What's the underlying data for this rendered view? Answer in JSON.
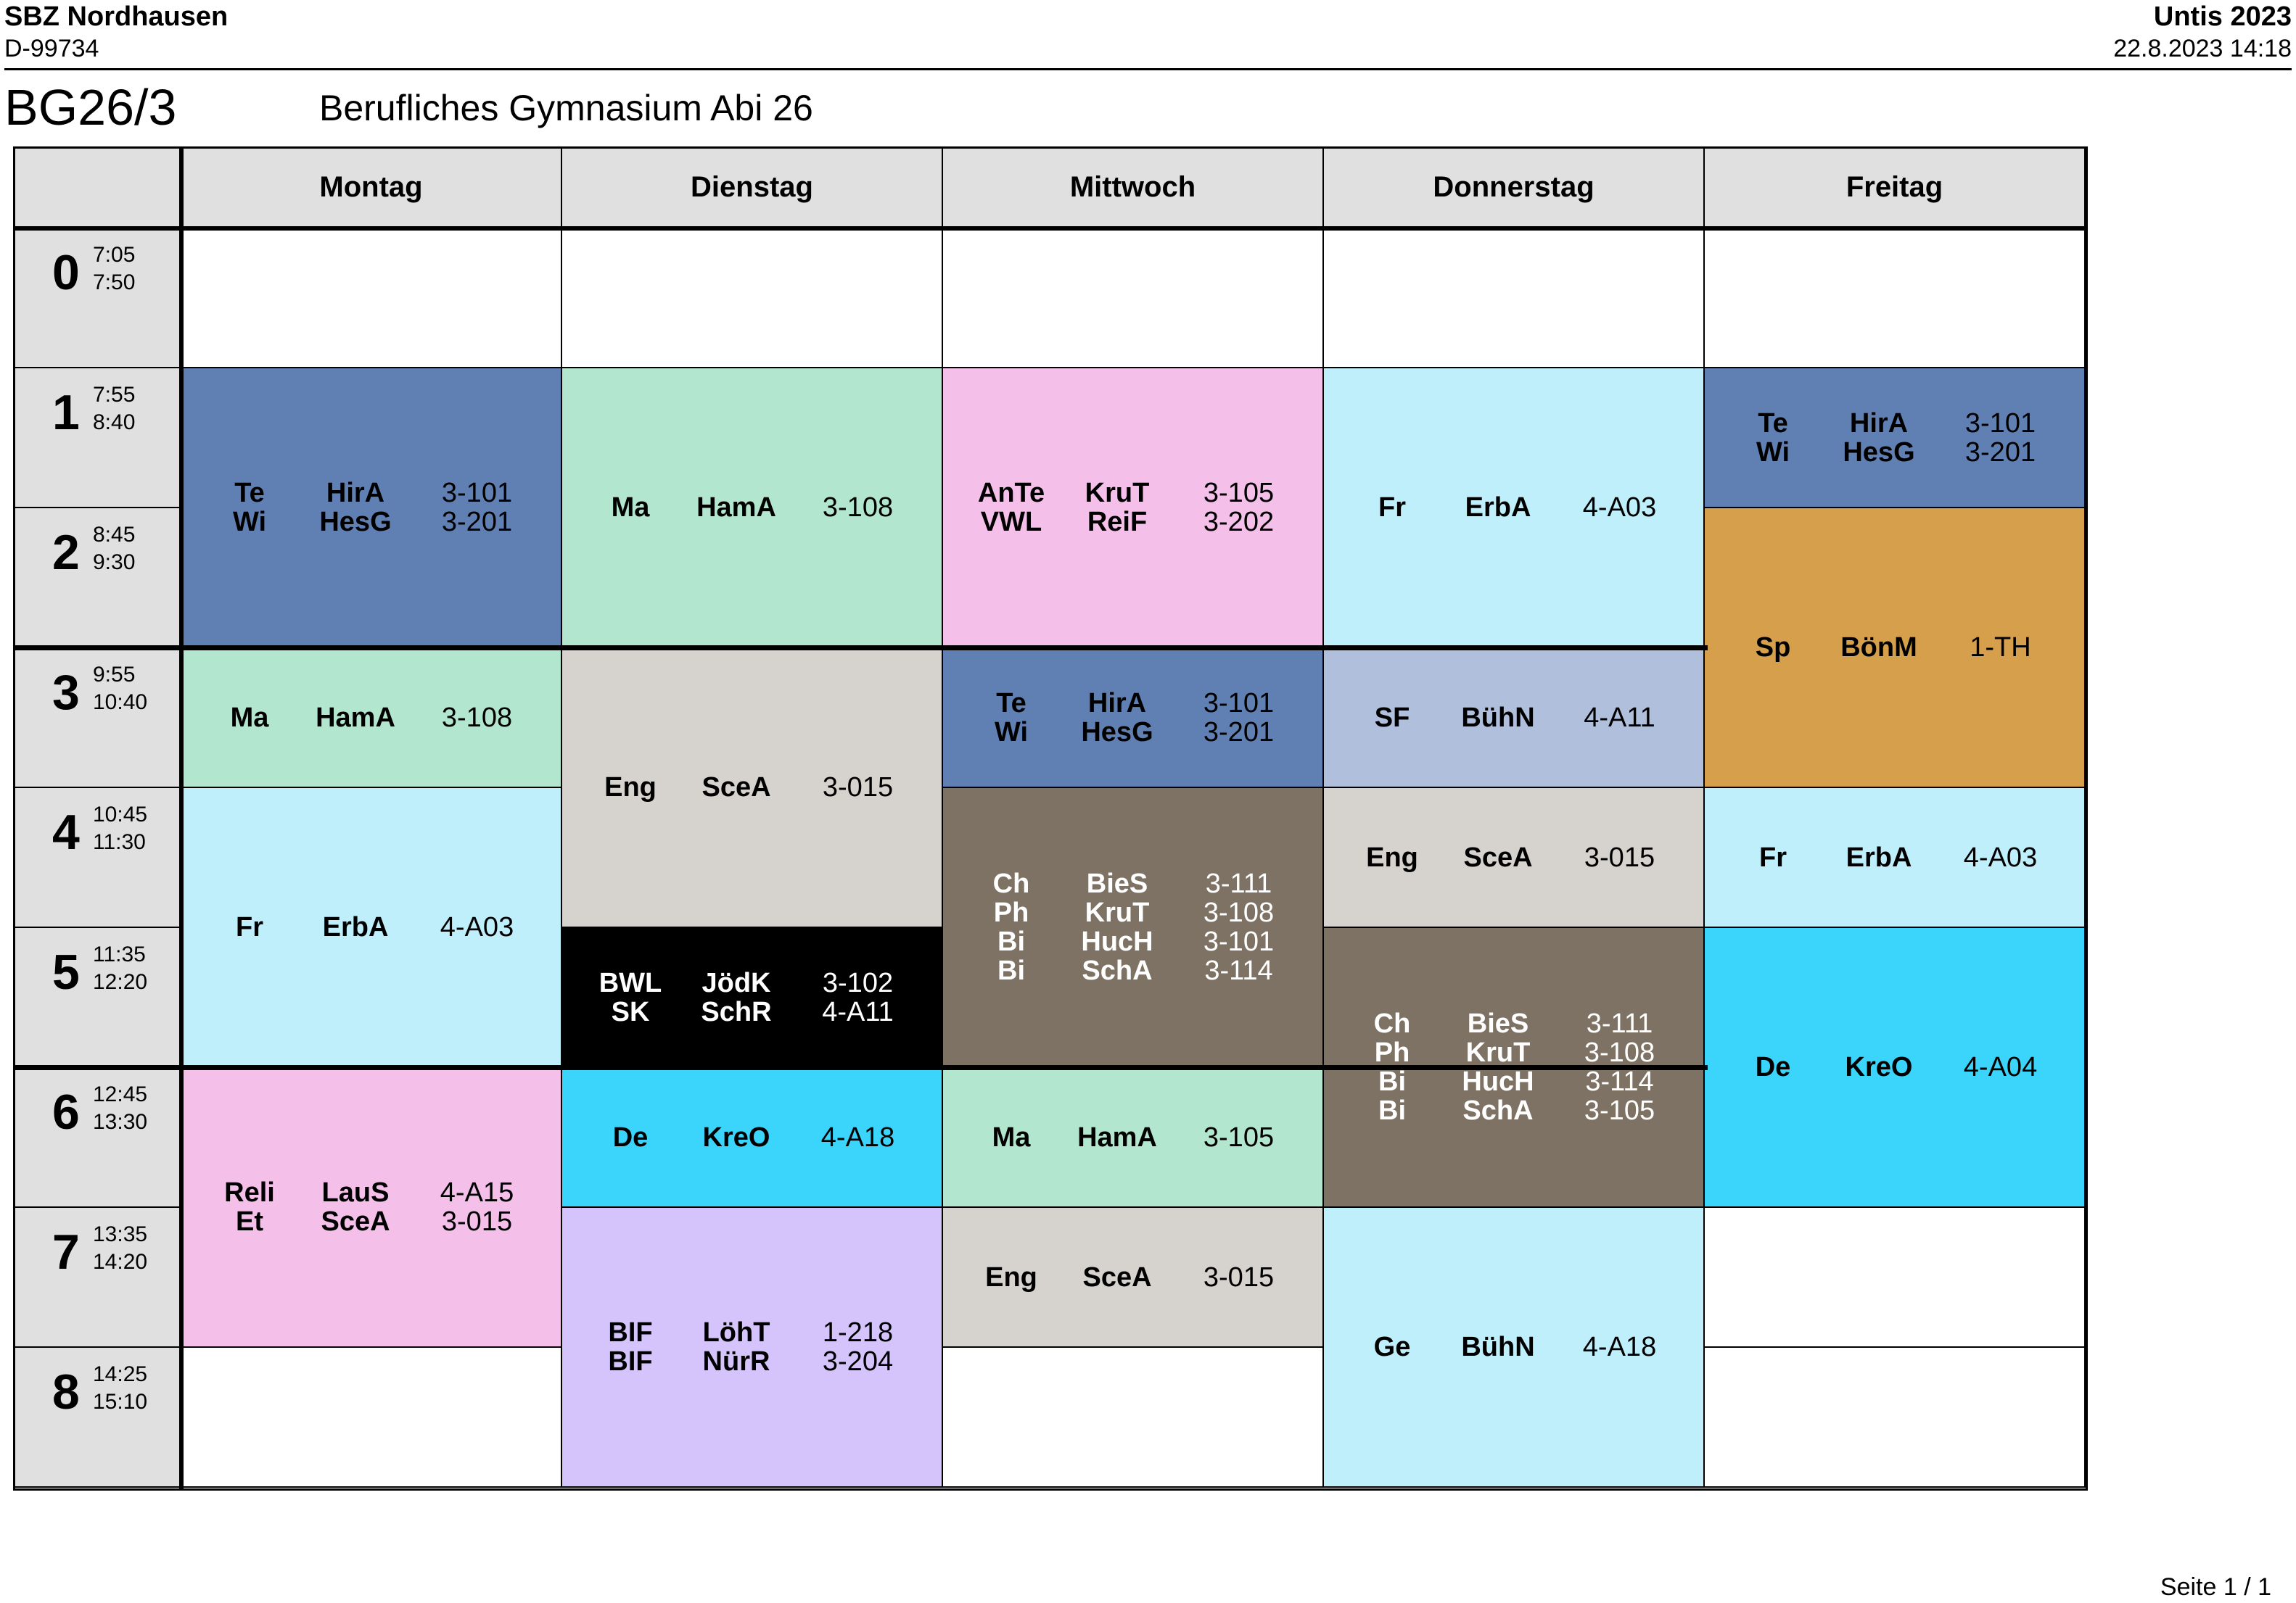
{
  "header": {
    "school": "SBZ Nordhausen",
    "code": "D-99734",
    "app": "Untis 2023",
    "stamp": "22.8.2023  14:18"
  },
  "class_name": "BG26/3",
  "class_desc": "Berufliches Gymnasium Abi 26",
  "days": [
    "Montag",
    "Dienstag",
    "Mittwoch",
    "Donnerstag",
    "Freitag"
  ],
  "periods": [
    {
      "num": "0",
      "start": "7:05",
      "end": "7:50"
    },
    {
      "num": "1",
      "start": "7:55",
      "end": "8:40"
    },
    {
      "num": "2",
      "start": "8:45",
      "end": "9:30"
    },
    {
      "num": "3",
      "start": "9:55",
      "end": "10:40"
    },
    {
      "num": "4",
      "start": "10:45",
      "end": "11:30"
    },
    {
      "num": "5",
      "start": "11:35",
      "end": "12:20"
    },
    {
      "num": "6",
      "start": "12:45",
      "end": "13:30"
    },
    {
      "num": "7",
      "start": "13:35",
      "end": "14:20"
    },
    {
      "num": "8",
      "start": "14:25",
      "end": "15:10"
    }
  ],
  "lessons": [
    {
      "day": 0,
      "start": 1,
      "span": 2,
      "color": "#6080b4",
      "dark": false,
      "rows": [
        [
          "Te",
          "HirA",
          "3-101"
        ],
        [
          "Wi",
          "HesG",
          "3-201"
        ]
      ]
    },
    {
      "day": 0,
      "start": 3,
      "span": 1,
      "color": "#b3e6cf",
      "dark": false,
      "rows": [
        [
          "Ma",
          "HamA",
          "3-108"
        ]
      ]
    },
    {
      "day": 0,
      "start": 4,
      "span": 2,
      "color": "#c0effc",
      "dark": false,
      "rows": [
        [
          "Fr",
          "ErbA",
          "4-A03"
        ]
      ]
    },
    {
      "day": 0,
      "start": 6,
      "span": 2,
      "color": "#f4bfe9",
      "dark": false,
      "rows": [
        [
          "Reli",
          "LauS",
          "4-A15"
        ],
        [
          "Et",
          "SceA",
          "3-015"
        ]
      ]
    },
    {
      "day": 1,
      "start": 1,
      "span": 2,
      "color": "#b3e6cf",
      "dark": false,
      "rows": [
        [
          "Ma",
          "HamA",
          "3-108"
        ]
      ]
    },
    {
      "day": 1,
      "start": 3,
      "span": 2,
      "color": "#d6d3ce",
      "dark": false,
      "rows": [
        [
          "Eng",
          "SceA",
          "3-015"
        ]
      ]
    },
    {
      "day": 1,
      "start": 5,
      "span": 1,
      "color": "#000000",
      "dark": true,
      "rows": [
        [
          "BWL",
          "JödK",
          "3-102"
        ],
        [
          "SK",
          "SchR",
          "4-A11"
        ]
      ]
    },
    {
      "day": 1,
      "start": 6,
      "span": 1,
      "color": "#3bd4fb",
      "dark": false,
      "rows": [
        [
          "De",
          "KreO",
          "4-A18"
        ]
      ]
    },
    {
      "day": 1,
      "start": 7,
      "span": 2,
      "color": "#d4c4fb",
      "dark": false,
      "rows": [
        [
          "BIF",
          "LöhT",
          "1-218"
        ],
        [
          "BIF",
          "NürR",
          "3-204"
        ]
      ]
    },
    {
      "day": 2,
      "start": 1,
      "span": 2,
      "color": "#f4bfe9",
      "dark": false,
      "rows": [
        [
          "AnTe",
          "KruT",
          "3-105"
        ],
        [
          "VWL",
          "ReiF",
          "3-202"
        ]
      ]
    },
    {
      "day": 2,
      "start": 3,
      "span": 1,
      "color": "#6080b4",
      "dark": false,
      "rows": [
        [
          "Te",
          "HirA",
          "3-101"
        ],
        [
          "Wi",
          "HesG",
          "3-201"
        ]
      ]
    },
    {
      "day": 2,
      "start": 4,
      "span": 2,
      "color": "#7e7264",
      "dark": true,
      "rows": [
        [
          "Ch",
          "BieS",
          "3-111"
        ],
        [
          "Ph",
          "KruT",
          "3-108"
        ],
        [
          "Bi",
          "HucH",
          "3-101"
        ],
        [
          "Bi",
          "SchA",
          "3-114"
        ]
      ]
    },
    {
      "day": 2,
      "start": 6,
      "span": 1,
      "color": "#b3e6cf",
      "dark": false,
      "rows": [
        [
          "Ma",
          "HamA",
          "3-105"
        ]
      ]
    },
    {
      "day": 2,
      "start": 7,
      "span": 1,
      "color": "#d6d3ce",
      "dark": false,
      "rows": [
        [
          "Eng",
          "SceA",
          "3-015"
        ]
      ]
    },
    {
      "day": 3,
      "start": 1,
      "span": 2,
      "color": "#c0effc",
      "dark": false,
      "rows": [
        [
          "Fr",
          "ErbA",
          "4-A03"
        ]
      ]
    },
    {
      "day": 3,
      "start": 3,
      "span": 1,
      "color": "#b0bfdc",
      "dark": false,
      "rows": [
        [
          "SF",
          "BühN",
          "4-A11"
        ]
      ]
    },
    {
      "day": 3,
      "start": 4,
      "span": 1,
      "color": "#d6d3ce",
      "dark": false,
      "rows": [
        [
          "Eng",
          "SceA",
          "3-015"
        ]
      ]
    },
    {
      "day": 3,
      "start": 5,
      "span": 2,
      "color": "#7e7264",
      "dark": true,
      "rows": [
        [
          "Ch",
          "BieS",
          "3-111"
        ],
        [
          "Ph",
          "KruT",
          "3-108"
        ],
        [
          "Bi",
          "HucH",
          "3-114"
        ],
        [
          "Bi",
          "SchA",
          "3-105"
        ]
      ]
    },
    {
      "day": 3,
      "start": 7,
      "span": 2,
      "color": "#c0effc",
      "dark": false,
      "rows": [
        [
          "Ge",
          "BühN",
          "4-A18"
        ]
      ]
    },
    {
      "day": 4,
      "start": 1,
      "span": 1,
      "color": "#6080b4",
      "dark": false,
      "rows": [
        [
          "Te",
          "HirA",
          "3-101"
        ],
        [
          "Wi",
          "HesG",
          "3-201"
        ]
      ]
    },
    {
      "day": 4,
      "start": 2,
      "span": 2,
      "color": "#d69f4b",
      "dark": false,
      "rows": [
        [
          "Sp",
          "BönM",
          "1-TH"
        ]
      ]
    },
    {
      "day": 4,
      "start": 4,
      "span": 1,
      "color": "#c0effc",
      "dark": false,
      "rows": [
        [
          "Fr",
          "ErbA",
          "4-A03"
        ]
      ]
    },
    {
      "day": 4,
      "start": 5,
      "span": 2,
      "color": "#3bd4fb",
      "dark": false,
      "rows": [
        [
          "De",
          "KreO",
          "4-A04"
        ]
      ]
    }
  ],
  "footer": "Seite 1 / 1"
}
